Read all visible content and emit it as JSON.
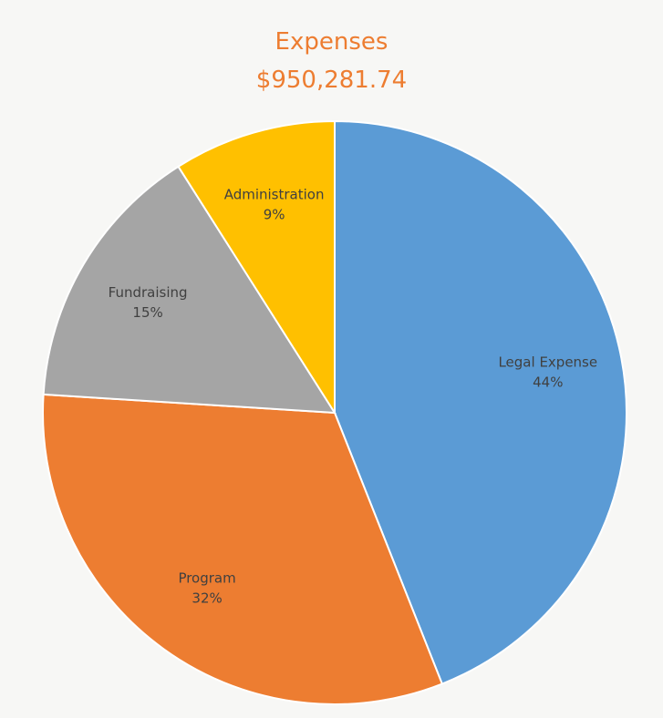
{
  "chart_data": {
    "type": "pie",
    "title": "Expenses",
    "subtitle": "$950,281.74",
    "slices": [
      {
        "label": "Legal Expense",
        "value": 44,
        "value_label": "44%",
        "color": "#5b9bd5"
      },
      {
        "label": "Program",
        "value": 32,
        "value_label": "32%",
        "color": "#ed7d31"
      },
      {
        "label": "Fundraising",
        "value": 15,
        "value_label": "15%",
        "color": "#a5a5a5"
      },
      {
        "label": "Administration",
        "value": 9,
        "value_label": "9%",
        "color": "#ffc000"
      }
    ],
    "start_angle_deg": 0,
    "direction": "clockwise",
    "legend": "none"
  }
}
